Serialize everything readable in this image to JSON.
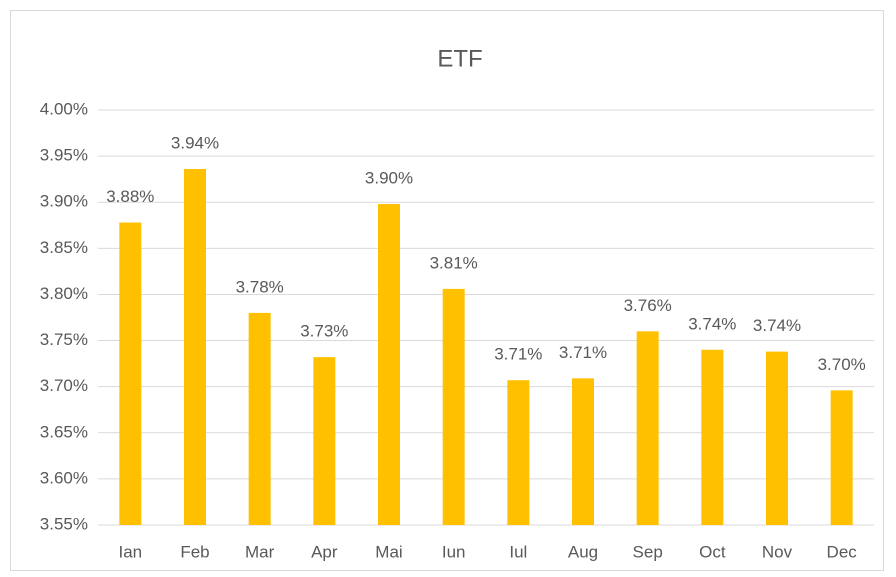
{
  "chart_data": {
    "type": "bar",
    "title": "ETF",
    "categories": [
      "Ian",
      "Feb",
      "Mar",
      "Apr",
      "Mai",
      "Iun",
      "Iul",
      "Aug",
      "Sep",
      "Oct",
      "Nov",
      "Dec"
    ],
    "values": [
      3.878,
      3.936,
      3.78,
      3.732,
      3.898,
      3.806,
      3.707,
      3.709,
      3.76,
      3.74,
      3.738,
      3.696
    ],
    "value_labels": [
      "3.88%",
      "3.94%",
      "3.78%",
      "3.73%",
      "3.90%",
      "3.81%",
      "3.71%",
      "3.71%",
      "3.76%",
      "3.74%",
      "3.74%",
      "3.70%"
    ],
    "color": "#ffc000",
    "ylim": [
      3.55,
      4.0
    ],
    "yticks": [
      {
        "value": 3.55,
        "label": "3.55%"
      },
      {
        "value": 3.6,
        "label": "3.60%"
      },
      {
        "value": 3.65,
        "label": "3.65%"
      },
      {
        "value": 3.7,
        "label": "3.70%"
      },
      {
        "value": 3.75,
        "label": "3.75%"
      },
      {
        "value": 3.8,
        "label": "3.80%"
      },
      {
        "value": 3.85,
        "label": "3.85%"
      },
      {
        "value": 3.9,
        "label": "3.90%"
      },
      {
        "value": 3.95,
        "label": "3.95%"
      },
      {
        "value": 4.0,
        "label": "4.00%"
      }
    ],
    "grid": true
  }
}
